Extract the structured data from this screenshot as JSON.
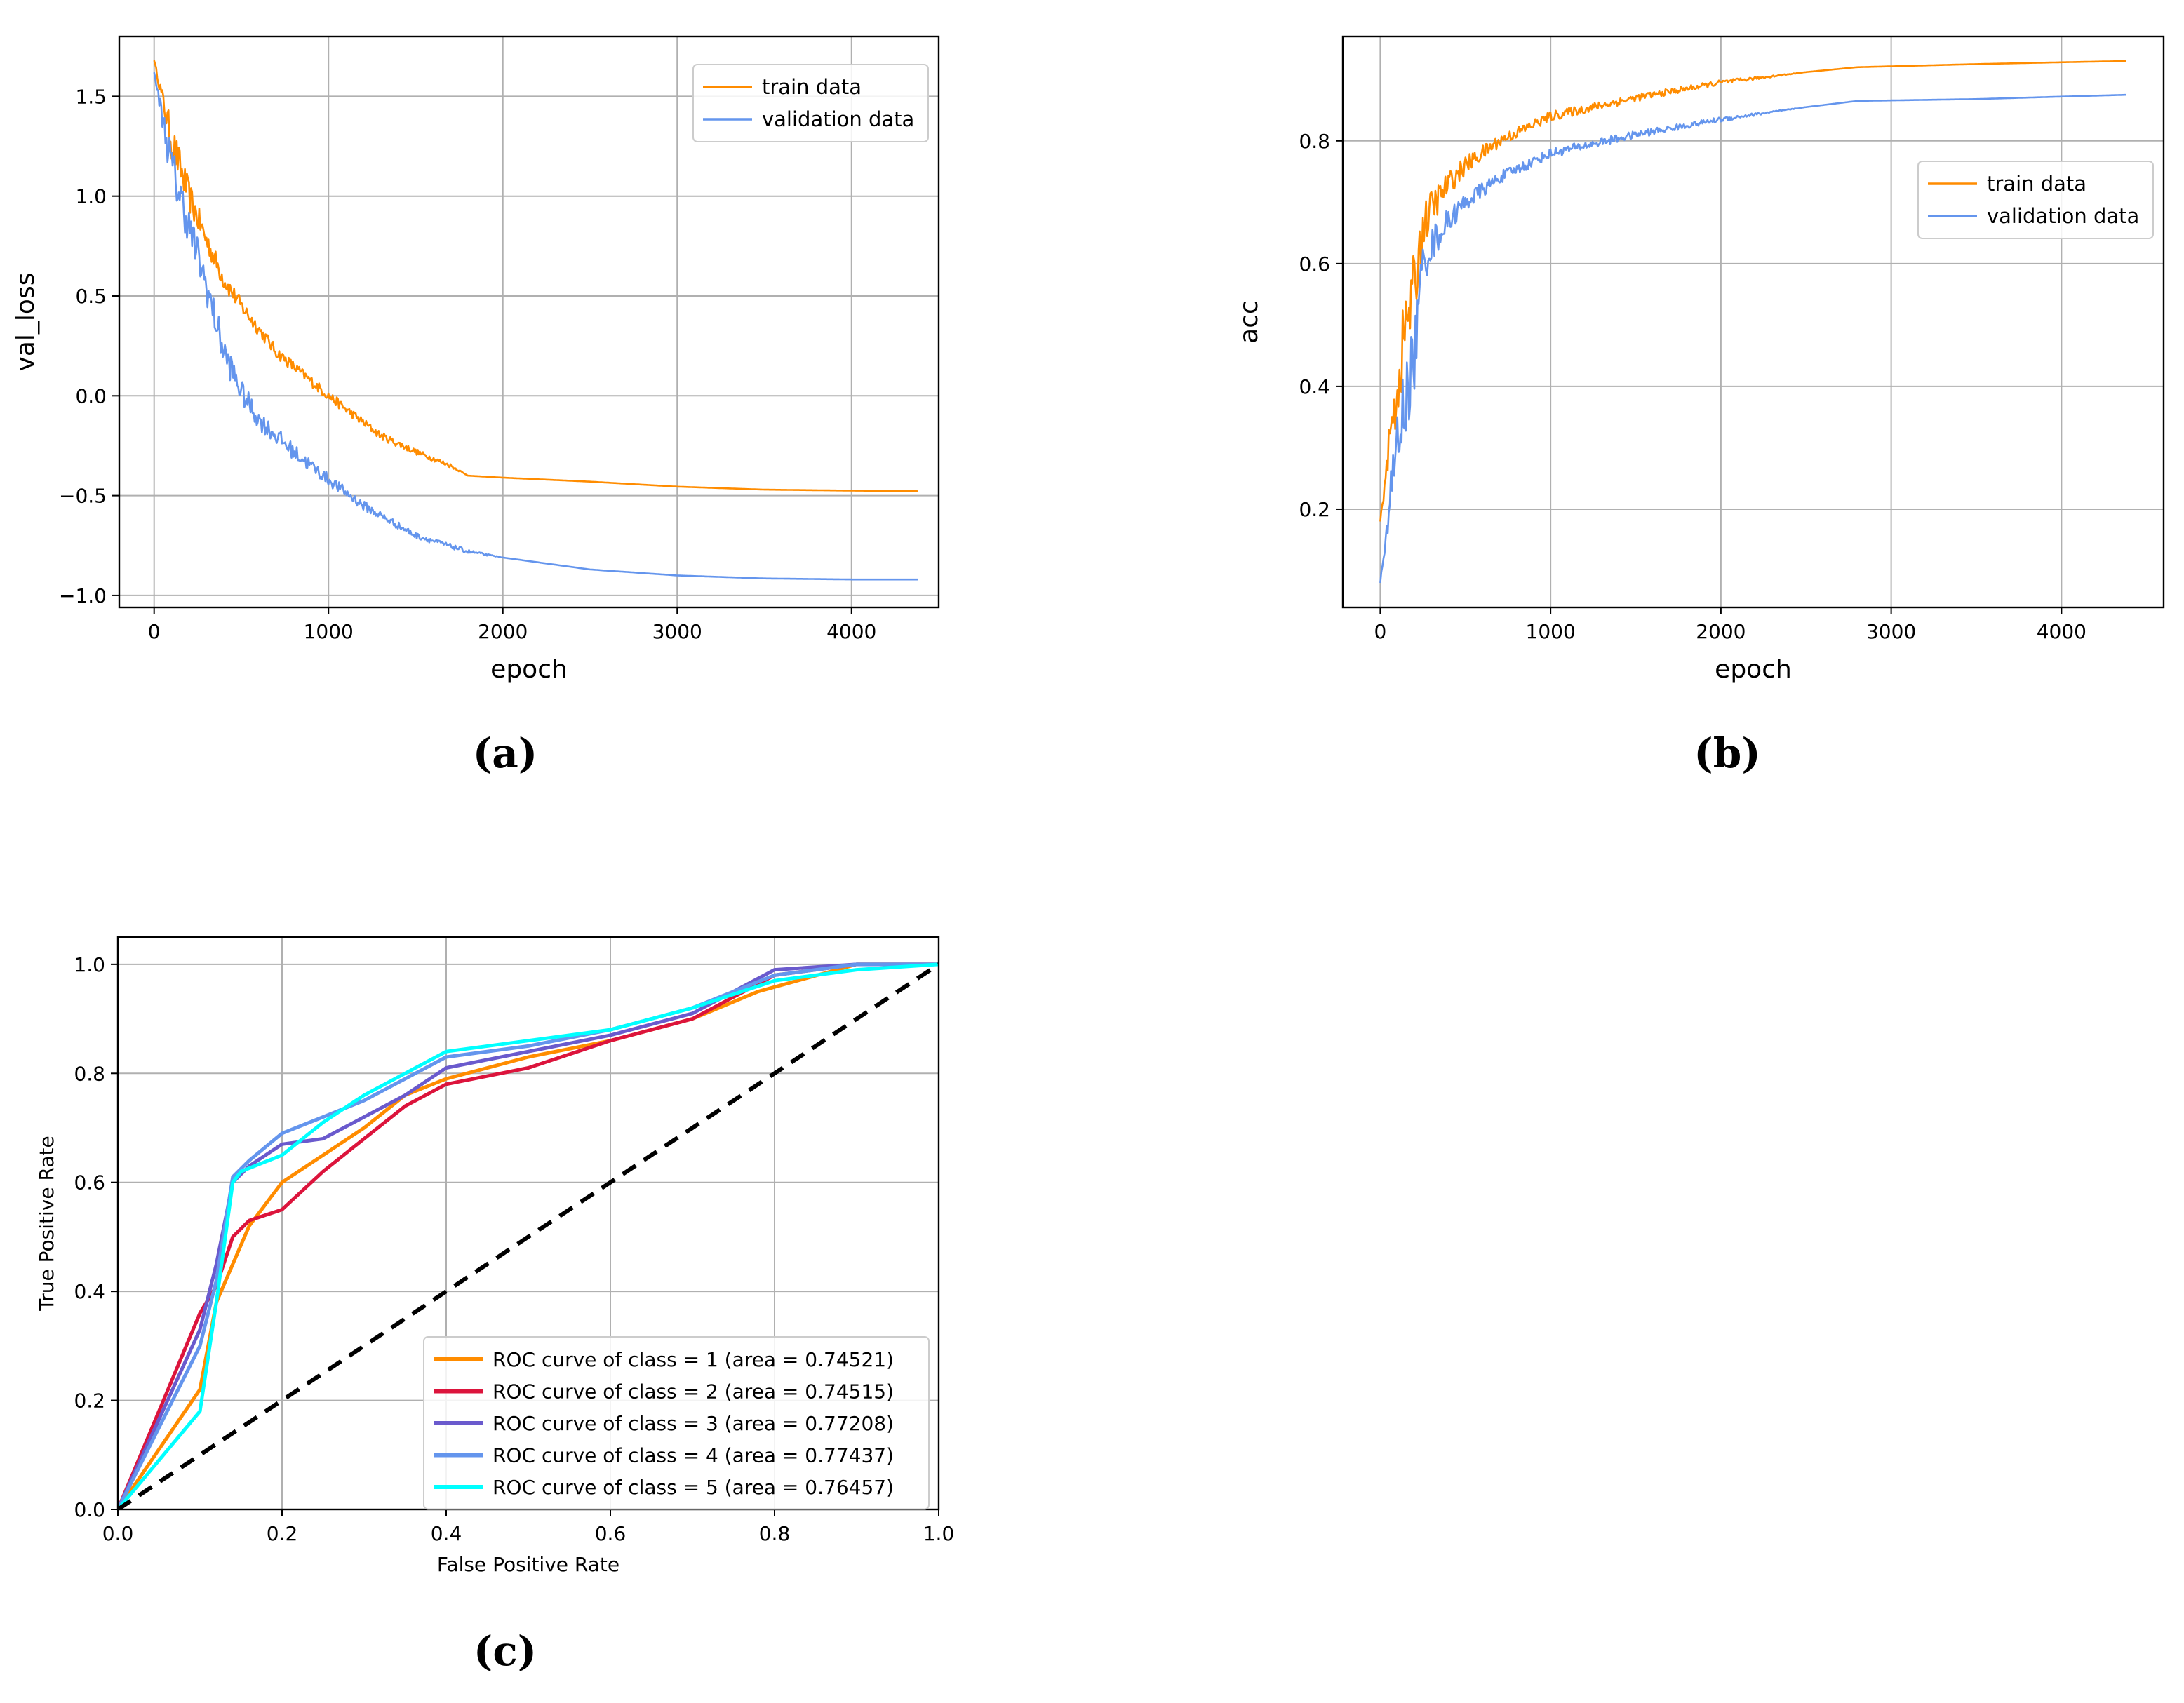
{
  "colors": {
    "train": "#ff8c00",
    "validation": "#6495ed",
    "grid": "#b0b0b0",
    "class1": "#ff8c00",
    "class2": "#dc143c",
    "class3": "#6a5acd",
    "class4": "#6495ed",
    "class5": "#00ffff",
    "chance": "#000000"
  },
  "captions": {
    "a": "(a)",
    "b": "(b)",
    "c": "(c)"
  },
  "chart_data": [
    {
      "id": "a",
      "type": "line",
      "title": "",
      "xlabel": "epoch",
      "ylabel": "val_loss",
      "xlim": [
        -200,
        4500
      ],
      "ylim": [
        -1.06,
        1.8
      ],
      "xticks": [
        0,
        1000,
        2000,
        3000,
        4000
      ],
      "xtick_labels": [
        "0",
        "1000",
        "2000",
        "3000",
        "4000"
      ],
      "yticks": [
        -1.0,
        -0.5,
        0.0,
        0.5,
        1.0,
        1.5
      ],
      "ytick_labels": [
        "−1.0",
        "−0.5",
        "0.0",
        "0.5",
        "1.0",
        "1.5"
      ],
      "grid": true,
      "legend": "top-right",
      "series": [
        {
          "name": "train data",
          "color_key": "train",
          "x": [
            0,
            100,
            200,
            300,
            400,
            500,
            700,
            1000,
            1300,
            1500,
            1700,
            1800,
            2000,
            2500,
            3000,
            3500,
            4000,
            4380
          ],
          "y": [
            1.68,
            1.28,
            1.0,
            0.78,
            0.58,
            0.45,
            0.22,
            0.0,
            -0.2,
            -0.28,
            -0.35,
            -0.4,
            -0.41,
            -0.43,
            -0.455,
            -0.47,
            -0.475,
            -0.478
          ],
          "noise": [
            0,
            0.1,
            0.08,
            0.06,
            0.05,
            0.04,
            0.03,
            0.025,
            0.02,
            0.015,
            0.01,
            0,
            0,
            0,
            0,
            0,
            0,
            0
          ]
        },
        {
          "name": "validation data",
          "color_key": "validation",
          "x": [
            0,
            100,
            200,
            300,
            400,
            500,
            600,
            800,
            1000,
            1200,
            1500,
            1800,
            2000,
            2500,
            3000,
            3500,
            4000,
            4380
          ],
          "y": [
            1.62,
            1.15,
            0.85,
            0.55,
            0.22,
            0.02,
            -0.12,
            -0.28,
            -0.42,
            -0.55,
            -0.7,
            -0.78,
            -0.81,
            -0.87,
            -0.9,
            -0.915,
            -0.92,
            -0.92
          ],
          "noise": [
            0,
            0.12,
            0.1,
            0.09,
            0.08,
            0.06,
            0.05,
            0.04,
            0.03,
            0.025,
            0.015,
            0.01,
            0,
            0,
            0,
            0,
            0,
            0
          ]
        }
      ]
    },
    {
      "id": "b",
      "type": "line",
      "title": "",
      "xlabel": "epoch",
      "ylabel": "acc",
      "xlim": [
        -220,
        4600
      ],
      "ylim": [
        0.04,
        0.97
      ],
      "xticks": [
        0,
        1000,
        2000,
        3000,
        4000
      ],
      "xtick_labels": [
        "0",
        "1000",
        "2000",
        "3000",
        "4000"
      ],
      "yticks": [
        0.2,
        0.4,
        0.6,
        0.8
      ],
      "ytick_labels": [
        "0.2",
        "0.4",
        "0.6",
        "0.8"
      ],
      "grid": true,
      "legend": "center-right",
      "series": [
        {
          "name": "train data",
          "color_key": "train",
          "x": [
            0,
            50,
            100,
            150,
            200,
            250,
            300,
            400,
            500,
            700,
            1000,
            1500,
            2000,
            2500,
            2800,
            3500,
            4000,
            4380
          ],
          "y": [
            0.18,
            0.3,
            0.4,
            0.5,
            0.56,
            0.66,
            0.69,
            0.73,
            0.76,
            0.8,
            0.84,
            0.87,
            0.895,
            0.912,
            0.92,
            0.925,
            0.928,
            0.93
          ],
          "noise": [
            0,
            0.03,
            0.07,
            0.06,
            0.06,
            0.04,
            0.03,
            0.02,
            0.015,
            0.01,
            0.008,
            0.006,
            0.004,
            0,
            0,
            0,
            0,
            0
          ]
        },
        {
          "name": "validation data",
          "color_key": "validation",
          "x": [
            0,
            50,
            100,
            150,
            200,
            250,
            300,
            400,
            500,
            700,
            1000,
            1500,
            2000,
            2500,
            2800,
            3500,
            4000,
            4380
          ],
          "y": [
            0.08,
            0.2,
            0.3,
            0.38,
            0.45,
            0.6,
            0.63,
            0.67,
            0.7,
            0.74,
            0.78,
            0.81,
            0.835,
            0.855,
            0.865,
            0.868,
            0.872,
            0.875
          ],
          "noise": [
            0,
            0.03,
            0.07,
            0.07,
            0.06,
            0.04,
            0.03,
            0.02,
            0.015,
            0.01,
            0.008,
            0.006,
            0.004,
            0,
            0,
            0,
            0,
            0
          ]
        }
      ]
    },
    {
      "id": "c",
      "type": "line",
      "title": "",
      "xlabel": "False Positive Rate",
      "ylabel": "True Positive Rate",
      "xlim": [
        0,
        1
      ],
      "ylim": [
        0,
        1.05
      ],
      "xticks": [
        0,
        0.2,
        0.4,
        0.6,
        0.8,
        1.0
      ],
      "xtick_labels": [
        "0.0",
        "0.2",
        "0.4",
        "0.6",
        "0.8",
        "1.0"
      ],
      "yticks": [
        0,
        0.2,
        0.4,
        0.6,
        0.8,
        1.0
      ],
      "ytick_labels": [
        "0.0",
        "0.2",
        "0.4",
        "0.6",
        "0.8",
        "1.0"
      ],
      "grid": true,
      "legend": "lower-right",
      "series": [
        {
          "name": "ROC curve of class = 1 (area = 0.74521)",
          "color_key": "class1",
          "x": [
            0,
            0.1,
            0.12,
            0.14,
            0.16,
            0.2,
            0.25,
            0.3,
            0.35,
            0.4,
            0.5,
            0.6,
            0.7,
            0.78,
            0.9,
            1.0
          ],
          "y": [
            0,
            0.22,
            0.38,
            0.45,
            0.52,
            0.6,
            0.65,
            0.7,
            0.76,
            0.79,
            0.83,
            0.86,
            0.9,
            0.95,
            1.0,
            1.0
          ]
        },
        {
          "name": "ROC curve of class = 2 (area = 0.74515)",
          "color_key": "class2",
          "x": [
            0,
            0.1,
            0.12,
            0.14,
            0.16,
            0.2,
            0.25,
            0.3,
            0.35,
            0.4,
            0.5,
            0.6,
            0.7,
            0.8,
            0.9,
            1.0
          ],
          "y": [
            0,
            0.36,
            0.41,
            0.5,
            0.53,
            0.55,
            0.62,
            0.68,
            0.74,
            0.78,
            0.81,
            0.86,
            0.9,
            0.98,
            1.0,
            1.0
          ]
        },
        {
          "name": "ROC curve of class = 3 (area = 0.77208)",
          "color_key": "class3",
          "x": [
            0,
            0.1,
            0.12,
            0.14,
            0.16,
            0.2,
            0.25,
            0.3,
            0.35,
            0.4,
            0.5,
            0.6,
            0.7,
            0.8,
            0.9,
            1.0
          ],
          "y": [
            0,
            0.33,
            0.45,
            0.6,
            0.63,
            0.67,
            0.68,
            0.72,
            0.76,
            0.81,
            0.84,
            0.87,
            0.91,
            0.99,
            1.0,
            1.0
          ]
        },
        {
          "name": "ROC curve of class = 4 (area = 0.77437)",
          "color_key": "class4",
          "x": [
            0,
            0.1,
            0.12,
            0.14,
            0.16,
            0.2,
            0.25,
            0.3,
            0.35,
            0.4,
            0.5,
            0.6,
            0.7,
            0.8,
            0.9,
            1.0
          ],
          "y": [
            0,
            0.3,
            0.42,
            0.61,
            0.64,
            0.69,
            0.72,
            0.75,
            0.79,
            0.83,
            0.85,
            0.88,
            0.92,
            0.98,
            1.0,
            1.0
          ]
        },
        {
          "name": "ROC curve of class = 5 (area = 0.76457)",
          "color_key": "class5",
          "x": [
            0,
            0.1,
            0.12,
            0.14,
            0.15,
            0.2,
            0.25,
            0.3,
            0.35,
            0.4,
            0.5,
            0.6,
            0.7,
            0.8,
            0.9,
            1.0
          ],
          "y": [
            0,
            0.18,
            0.38,
            0.6,
            0.62,
            0.65,
            0.71,
            0.76,
            0.8,
            0.84,
            0.86,
            0.88,
            0.92,
            0.97,
            0.99,
            1.0
          ]
        },
        {
          "name": "chance",
          "color_key": "chance",
          "dashed": true,
          "in_legend": false,
          "x": [
            0,
            1
          ],
          "y": [
            0,
            1
          ]
        }
      ]
    }
  ]
}
